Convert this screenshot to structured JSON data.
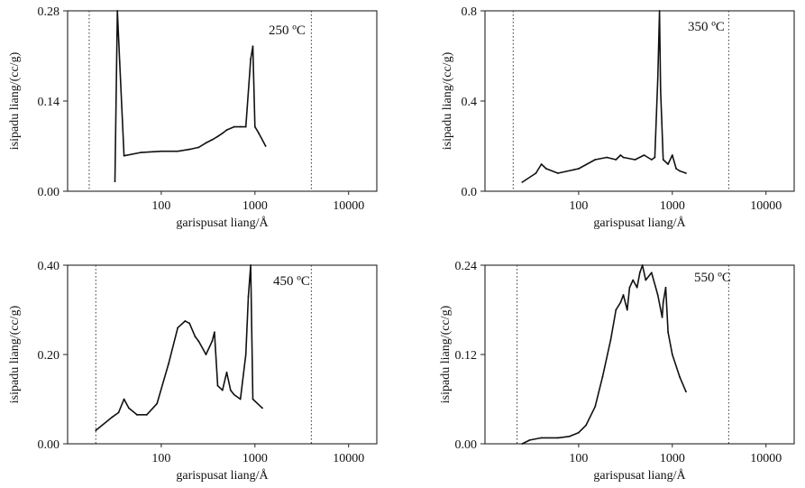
{
  "chart_data": [
    {
      "type": "line",
      "title": "250 ºC",
      "xlabel": "garispusat liang/Å",
      "ylabel": "isipadu liang/(cc/g)",
      "x_scale": "log",
      "x_ticks": [
        100,
        1000,
        10000
      ],
      "x_tick_labels": [
        "100",
        "1000",
        "10000"
      ],
      "y_ticks": [
        0,
        0.14,
        0.28
      ],
      "y_tick_labels": [
        "0.00",
        "0.14",
        "0.28"
      ],
      "ylim": [
        0,
        0.28
      ],
      "xlim": [
        10,
        20000
      ],
      "dotted_lines_x": [
        17,
        4000
      ],
      "series": [
        {
          "x": [
            32,
            34,
            36,
            40,
            60,
            100,
            150,
            200,
            250,
            300,
            350,
            400,
            450,
            500,
            600,
            700,
            800,
            900,
            950,
            1000,
            1100,
            1300
          ],
          "y": [
            0.015,
            0.28,
            0.2,
            0.055,
            0.06,
            0.062,
            0.062,
            0.065,
            0.068,
            0.075,
            0.08,
            0.085,
            0.09,
            0.095,
            0.1,
            0.1,
            0.1,
            0.205,
            0.225,
            0.1,
            0.09,
            0.07
          ]
        }
      ]
    },
    {
      "type": "line",
      "title": "350 ºC",
      "xlabel": "garispusat liang/Å",
      "ylabel": "isipadu liang/(cc/g)",
      "x_scale": "log",
      "x_ticks": [
        100,
        1000,
        10000
      ],
      "x_tick_labels": [
        "100",
        "1000",
        "10000"
      ],
      "y_ticks": [
        0,
        0.4,
        0.8
      ],
      "y_tick_labels": [
        "0.0",
        "0.4",
        "0.8"
      ],
      "ylim": [
        0,
        0.8
      ],
      "xlim": [
        10,
        20000
      ],
      "dotted_lines_x": [
        20,
        4000
      ],
      "series": [
        {
          "x": [
            25,
            35,
            40,
            45,
            60,
            100,
            150,
            200,
            250,
            280,
            300,
            400,
            500,
            600,
            650,
            700,
            730,
            750,
            800,
            900,
            1000,
            1100,
            1200,
            1400
          ],
          "y": [
            0.04,
            0.08,
            0.12,
            0.1,
            0.08,
            0.1,
            0.14,
            0.15,
            0.14,
            0.16,
            0.15,
            0.14,
            0.16,
            0.14,
            0.15,
            0.5,
            0.8,
            0.45,
            0.14,
            0.12,
            0.16,
            0.1,
            0.09,
            0.08
          ]
        }
      ]
    },
    {
      "type": "line",
      "title": "450 ºC",
      "xlabel": "garispusat liang/Å",
      "ylabel": "isipadu liang/(cc/g)",
      "x_scale": "log",
      "x_ticks": [
        100,
        1000,
        10000
      ],
      "x_tick_labels": [
        "100",
        "1000",
        "10000"
      ],
      "y_ticks": [
        0,
        0.2,
        0.4
      ],
      "y_tick_labels": [
        "0.00",
        "0.20",
        "0.40"
      ],
      "ylim": [
        0,
        0.4
      ],
      "xlim": [
        10,
        20000
      ],
      "dotted_lines_x": [
        20,
        4000
      ],
      "series": [
        {
          "x": [
            20,
            30,
            35,
            40,
            45,
            55,
            70,
            90,
            120,
            150,
            180,
            200,
            230,
            250,
            300,
            350,
            370,
            400,
            450,
            500,
            550,
            600,
            700,
            800,
            850,
            900,
            950,
            1200
          ],
          "y": [
            0.03,
            0.06,
            0.07,
            0.1,
            0.08,
            0.065,
            0.065,
            0.09,
            0.18,
            0.26,
            0.275,
            0.27,
            0.24,
            0.23,
            0.2,
            0.23,
            0.25,
            0.13,
            0.12,
            0.16,
            0.12,
            0.11,
            0.1,
            0.2,
            0.33,
            0.4,
            0.1,
            0.08
          ]
        }
      ]
    },
    {
      "type": "line",
      "title": "550 ºC",
      "xlabel": "garispusat liang/Å",
      "ylabel": "isipadu liang/(cc/g)",
      "x_scale": "log",
      "x_ticks": [
        100,
        1000,
        10000
      ],
      "x_tick_labels": [
        "100",
        "1000",
        "10000"
      ],
      "y_ticks": [
        0,
        0.12,
        0.24
      ],
      "y_tick_labels": [
        "0.00",
        "0.12",
        "0.24"
      ],
      "ylim": [
        0,
        0.24
      ],
      "xlim": [
        10,
        20000
      ],
      "dotted_lines_x": [
        22,
        4000
      ],
      "series": [
        {
          "x": [
            25,
            30,
            40,
            60,
            80,
            100,
            120,
            150,
            180,
            220,
            250,
            280,
            300,
            330,
            350,
            380,
            420,
            450,
            480,
            520,
            600,
            700,
            780,
            800,
            850,
            900,
            1000,
            1200,
            1400
          ],
          "y": [
            0.0,
            0.005,
            0.008,
            0.008,
            0.01,
            0.015,
            0.025,
            0.05,
            0.09,
            0.14,
            0.18,
            0.19,
            0.2,
            0.18,
            0.21,
            0.22,
            0.21,
            0.23,
            0.24,
            0.22,
            0.23,
            0.2,
            0.17,
            0.19,
            0.21,
            0.15,
            0.12,
            0.09,
            0.07
          ]
        }
      ]
    }
  ]
}
